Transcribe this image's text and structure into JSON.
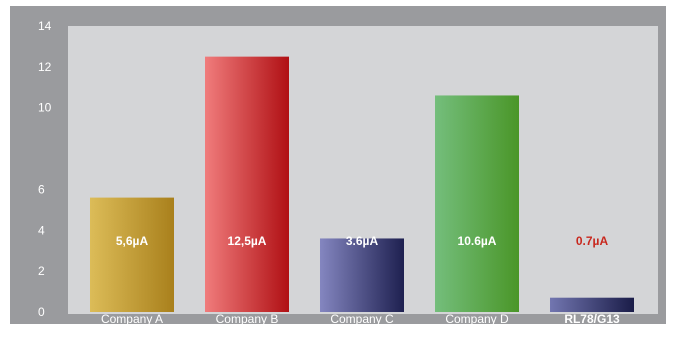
{
  "chart_data": {
    "type": "bar",
    "categories": [
      "Company A",
      "Company B",
      "Company C",
      "Company D",
      "RL78/G13"
    ],
    "values": [
      5.6,
      12.5,
      3.6,
      10.6,
      0.7
    ],
    "value_labels": [
      "5,6µA",
      "12,5µA",
      "3.6µA",
      "10.6µA",
      "0.7µA"
    ],
    "ylim": [
      0,
      14
    ],
    "yticks": [
      0,
      2,
      4,
      6,
      10,
      12,
      14
    ],
    "grid": false,
    "title": "",
    "xlabel": "",
    "ylabel": ""
  },
  "colors": {
    "frame": "#9a9b9e",
    "plot": "#d4d5d7",
    "highlight_text": "#c8281e",
    "value_text": "#ffffff",
    "bars": [
      [
        "#dcbc58",
        "#a9801c"
      ],
      [
        "#f07c7c",
        "#b01014"
      ],
      [
        "#8486c0",
        "#1e2050"
      ],
      [
        "#74be7c",
        "#4a9628"
      ],
      [
        "#7276b0",
        "#1a1c48"
      ]
    ]
  }
}
